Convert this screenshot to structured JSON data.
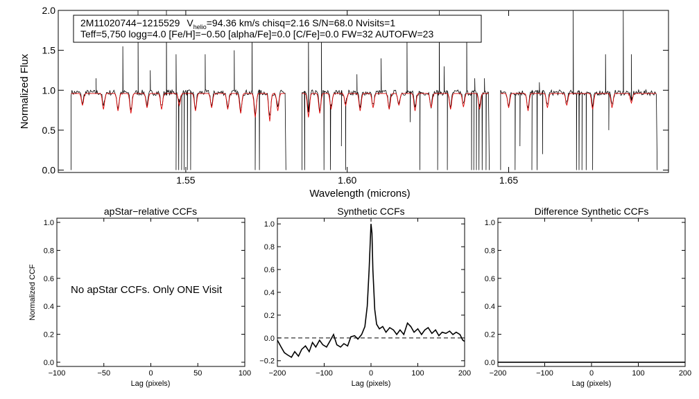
{
  "chart_data": [
    {
      "id": "spectrum",
      "type": "line",
      "title": "",
      "xlabel": "Wavelength (microns)",
      "ylabel": "Normalized Flux",
      "xlim": [
        1.5105,
        1.6995
      ],
      "ylim": [
        -0.03,
        2.0
      ],
      "xticks": [
        1.55,
        1.6,
        1.65
      ],
      "xtick_labels": [
        "1.55",
        "1.60",
        "1.65"
      ],
      "yticks": [
        0.0,
        0.5,
        1.0,
        1.5,
        2.0
      ],
      "ytick_labels": [
        "0.0",
        "0.5",
        "1.0",
        "1.5",
        "2.0"
      ],
      "header": {
        "id_text": "2M11020744−1215529",
        "vhelio_symbol": "V",
        "vhelio_sub": "helio",
        "vhelio_rest": "=94.36 km/s  chisq=2.16  S/N=68.0  Nvisits=1",
        "line2": "Teff=5,750 logg=4.0 [Fe/H]=−0.50 [alpha/Fe]=0.0 [C/Fe]=0.0 FW=32 AUTOFW=23"
      },
      "chip_ranges": [
        [
          1.5145,
          1.581
        ],
        [
          1.586,
          1.644
        ],
        [
          1.6475,
          1.696
        ]
      ],
      "continuum_level": 0.97,
      "model_continuum_level": 0.96,
      "emission_spikes": [
        {
          "x": 1.5222,
          "y": 1.15
        },
        {
          "x": 1.5305,
          "y": 1.55
        },
        {
          "x": 1.5352,
          "y": 2.0
        },
        {
          "x": 1.539,
          "y": 1.25
        },
        {
          "x": 1.544,
          "y": 2.0
        },
        {
          "x": 1.547,
          "y": 1.45
        },
        {
          "x": 1.556,
          "y": 1.45
        },
        {
          "x": 1.565,
          "y": 1.5
        },
        {
          "x": 1.5705,
          "y": 1.85
        },
        {
          "x": 1.588,
          "y": 1.8
        },
        {
          "x": 1.592,
          "y": 1.8
        },
        {
          "x": 1.603,
          "y": 1.2
        },
        {
          "x": 1.6105,
          "y": 1.4
        },
        {
          "x": 1.6185,
          "y": 1.75
        },
        {
          "x": 1.6285,
          "y": 2.0
        },
        {
          "x": 1.63,
          "y": 1.3
        },
        {
          "x": 1.637,
          "y": 1.85
        },
        {
          "x": 1.6395,
          "y": 1.15
        },
        {
          "x": 1.6425,
          "y": 1.15
        },
        {
          "x": 1.6595,
          "y": 1.1
        },
        {
          "x": 1.67,
          "y": 2.0
        },
        {
          "x": 1.68,
          "y": 1.45
        },
        {
          "x": 1.6855,
          "y": 2.0
        },
        {
          "x": 1.688,
          "y": 1.45
        }
      ],
      "absorption_dips": [
        {
          "x": 1.547,
          "y": 0.0
        },
        {
          "x": 1.5478,
          "y": 0.0
        },
        {
          "x": 1.5487,
          "y": 0.0
        },
        {
          "x": 1.5495,
          "y": 0.0
        },
        {
          "x": 1.5505,
          "y": 0.0
        },
        {
          "x": 1.5515,
          "y": 0.0
        },
        {
          "x": 1.5715,
          "y": 0.0
        },
        {
          "x": 1.5728,
          "y": 0.0
        },
        {
          "x": 1.5868,
          "y": 0.0
        },
        {
          "x": 1.5928,
          "y": 0.0
        },
        {
          "x": 1.5948,
          "y": 0.0
        },
        {
          "x": 1.5982,
          "y": 0.3
        },
        {
          "x": 1.5995,
          "y": 0.0
        },
        {
          "x": 1.6195,
          "y": 0.6
        },
        {
          "x": 1.6225,
          "y": 0.0
        },
        {
          "x": 1.628,
          "y": 0.0
        },
        {
          "x": 1.631,
          "y": 0.0
        },
        {
          "x": 1.6385,
          "y": 0.0
        },
        {
          "x": 1.6392,
          "y": 0.0
        },
        {
          "x": 1.64,
          "y": 0.0
        },
        {
          "x": 1.6408,
          "y": 0.0
        },
        {
          "x": 1.6418,
          "y": 0.0
        },
        {
          "x": 1.643,
          "y": 0.0
        },
        {
          "x": 1.652,
          "y": 0.0
        },
        {
          "x": 1.6535,
          "y": 0.3
        },
        {
          "x": 1.6572,
          "y": 0.0
        },
        {
          "x": 1.6588,
          "y": 0.0
        },
        {
          "x": 1.6605,
          "y": 0.2
        },
        {
          "x": 1.671,
          "y": 0.0
        },
        {
          "x": 1.6718,
          "y": 0.0
        },
        {
          "x": 1.6727,
          "y": 0.0
        },
        {
          "x": 1.674,
          "y": 0.0
        },
        {
          "x": 1.676,
          "y": 0.0
        },
        {
          "x": 1.681,
          "y": 0.5
        }
      ],
      "model_lines": [
        {
          "x": 1.518,
          "depth": 0.15
        },
        {
          "x": 1.5245,
          "depth": 0.2
        },
        {
          "x": 1.529,
          "depth": 0.22
        },
        {
          "x": 1.533,
          "depth": 0.25
        },
        {
          "x": 1.538,
          "depth": 0.18
        },
        {
          "x": 1.5425,
          "depth": 0.2
        },
        {
          "x": 1.548,
          "depth": 0.15
        },
        {
          "x": 1.553,
          "depth": 0.22
        },
        {
          "x": 1.558,
          "depth": 0.18
        },
        {
          "x": 1.563,
          "depth": 0.2
        },
        {
          "x": 1.567,
          "depth": 0.25
        },
        {
          "x": 1.5715,
          "depth": 0.3
        },
        {
          "x": 1.576,
          "depth": 0.35
        },
        {
          "x": 1.5785,
          "depth": 0.22
        },
        {
          "x": 1.588,
          "depth": 0.3
        },
        {
          "x": 1.5915,
          "depth": 0.25
        },
        {
          "x": 1.595,
          "depth": 0.2
        },
        {
          "x": 1.5995,
          "depth": 0.15
        },
        {
          "x": 1.604,
          "depth": 0.22
        },
        {
          "x": 1.608,
          "depth": 0.18
        },
        {
          "x": 1.613,
          "depth": 0.2
        },
        {
          "x": 1.616,
          "depth": 0.15
        },
        {
          "x": 1.621,
          "depth": 0.22
        },
        {
          "x": 1.626,
          "depth": 0.18
        },
        {
          "x": 1.632,
          "depth": 0.2
        },
        {
          "x": 1.636,
          "depth": 0.17
        },
        {
          "x": 1.641,
          "depth": 0.2
        },
        {
          "x": 1.65,
          "depth": 0.18
        },
        {
          "x": 1.656,
          "depth": 0.22
        },
        {
          "x": 1.662,
          "depth": 0.18
        },
        {
          "x": 1.668,
          "depth": 0.15
        },
        {
          "x": 1.676,
          "depth": 0.2
        },
        {
          "x": 1.682,
          "depth": 0.18
        },
        {
          "x": 1.688,
          "depth": 0.12
        }
      ],
      "colors": {
        "observed": "#000000",
        "model": "#dd0000"
      }
    },
    {
      "id": "apstar-ccf",
      "type": "line",
      "title": "apStar−relative CCFs",
      "xlabel": "Lag (pixels)",
      "ylabel": "Normalized CCF",
      "xlim": [
        -100,
        100
      ],
      "ylim": [
        -0.03,
        1.03
      ],
      "xticks": [
        -100,
        -50,
        0,
        50,
        100
      ],
      "xtick_labels": [
        "−100",
        "−50",
        "0",
        "50",
        "100"
      ],
      "yticks": [
        0.0,
        0.2,
        0.4,
        0.6,
        0.8,
        1.0
      ],
      "ytick_labels": [
        "0.0",
        "0.2",
        "0.4",
        "0.6",
        "0.8",
        "1.0"
      ],
      "message": "No apStar CCFs.  Only ONE Visit",
      "series": []
    },
    {
      "id": "synthetic-ccf",
      "type": "line",
      "title": "Synthetic CCFs",
      "xlabel": "Lag (pixels)",
      "ylabel": "",
      "xlim": [
        -200,
        200
      ],
      "ylim": [
        -0.25,
        1.05
      ],
      "xticks": [
        -200,
        -100,
        0,
        100,
        200
      ],
      "xtick_labels": [
        "−200",
        "−100",
        "0",
        "100",
        "200"
      ],
      "yticks": [
        -0.2,
        0.0,
        0.2,
        0.4,
        0.6,
        0.8,
        1.0
      ],
      "ytick_labels": [
        "−0.2",
        "0.0",
        "0.2",
        "0.4",
        "0.6",
        "0.8",
        "1.0"
      ],
      "zero_line": 0.0,
      "series": [
        {
          "name": "Synthetic CCF",
          "x": [
            -200,
            -192,
            -185,
            -178,
            -170,
            -163,
            -155,
            -148,
            -140,
            -132,
            -125,
            -118,
            -110,
            -103,
            -95,
            -88,
            -80,
            -73,
            -65,
            -58,
            -50,
            -43,
            -35,
            -28,
            -20,
            -13,
            -8,
            -4,
            -1,
            0,
            2,
            4,
            8,
            12,
            18,
            25,
            32,
            40,
            48,
            55,
            62,
            70,
            78,
            85,
            92,
            100,
            108,
            115,
            122,
            130,
            138,
            145,
            152,
            160,
            168,
            175,
            182,
            190,
            196,
            200
          ],
          "y": [
            -0.02,
            -0.08,
            -0.13,
            -0.15,
            -0.17,
            -0.12,
            -0.16,
            -0.1,
            -0.07,
            -0.12,
            -0.04,
            -0.08,
            -0.02,
            -0.06,
            -0.08,
            -0.03,
            0.03,
            -0.06,
            -0.08,
            -0.05,
            -0.07,
            0.01,
            0.02,
            -0.01,
            0.03,
            0.1,
            0.28,
            0.6,
            0.9,
            1.0,
            0.92,
            0.6,
            0.25,
            0.12,
            0.08,
            0.1,
            0.05,
            0.09,
            0.07,
            0.03,
            0.07,
            0.03,
            0.13,
            0.1,
            0.05,
            0.08,
            0.03,
            0.07,
            0.09,
            0.04,
            0.07,
            0.02,
            0.05,
            0.04,
            0.06,
            0.03,
            0.05,
            0.03,
            -0.02,
            -0.03
          ]
        }
      ]
    },
    {
      "id": "difference-ccf",
      "type": "line",
      "title": "Difference Synthetic CCFs",
      "xlabel": "Lag (pixels)",
      "ylabel": "",
      "xlim": [
        -200,
        200
      ],
      "ylim": [
        -0.03,
        1.03
      ],
      "xticks": [
        -200,
        -100,
        0,
        100,
        200
      ],
      "xtick_labels": [
        "−200",
        "−100",
        "0",
        "100",
        "200"
      ],
      "yticks": [
        0.0,
        0.2,
        0.4,
        0.6,
        0.8,
        1.0
      ],
      "ytick_labels": [
        "0.0",
        "0.2",
        "0.4",
        "0.6",
        "0.8",
        "1.0"
      ],
      "series": [
        {
          "name": "Difference",
          "x": [
            -200,
            200
          ],
          "y": [
            0.0,
            0.0
          ]
        }
      ]
    }
  ]
}
